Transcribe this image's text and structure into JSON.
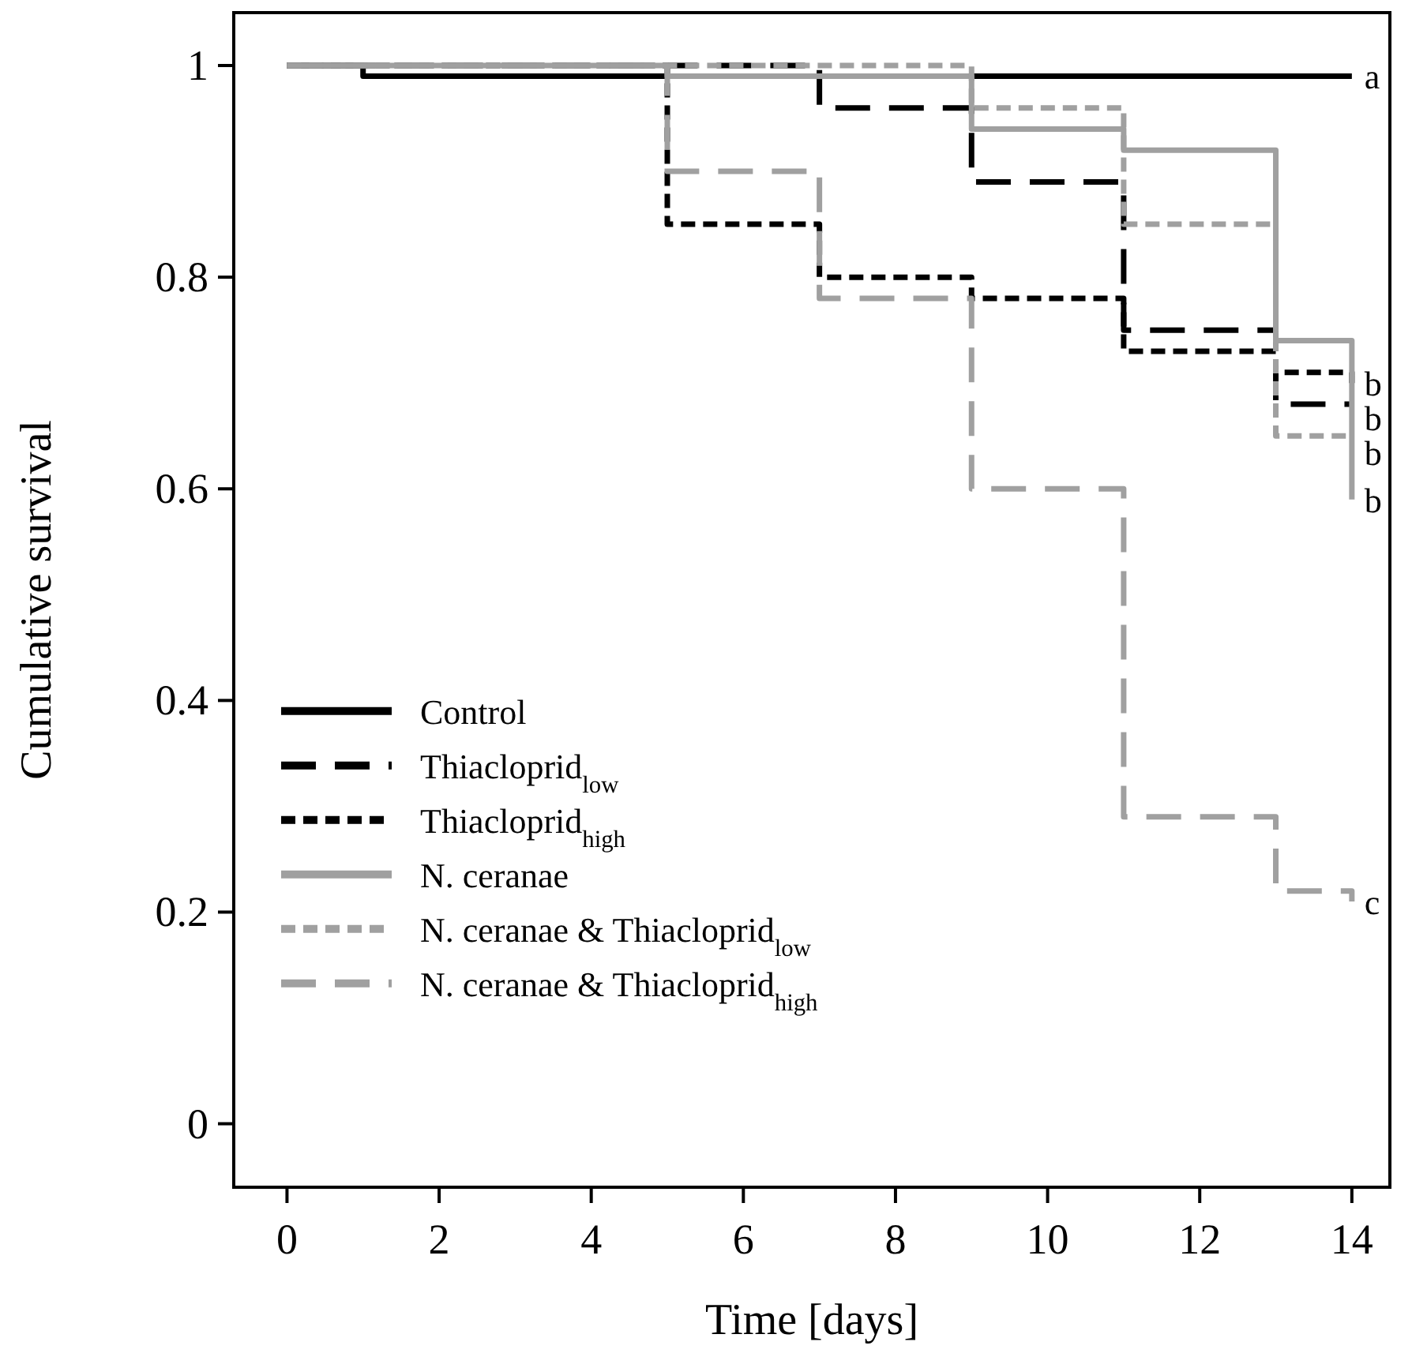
{
  "chart_data": {
    "type": "step",
    "xlabel": "Time [days]",
    "ylabel": "Cumulative survival",
    "xlim": [
      -0.7,
      14.5
    ],
    "ylim": [
      -0.06,
      1.05
    ],
    "xticks": [
      0,
      2,
      4,
      6,
      8,
      10,
      12,
      14
    ],
    "yticks": [
      0,
      0.2,
      0.4,
      0.6,
      0.8,
      1
    ],
    "legend": "bottom left",
    "grid": false,
    "series": [
      {
        "name": "Control",
        "color": "#000000",
        "line_style": "solid",
        "x": [
          0,
          1,
          14
        ],
        "values": [
          1,
          0.99,
          0.99
        ]
      },
      {
        "name": "Thiacloprid$_{low}$",
        "color": "#000000",
        "line_style": "dashed",
        "x": [
          0,
          7,
          9,
          11,
          13,
          14
        ],
        "values": [
          1,
          0.96,
          0.89,
          0.75,
          0.68,
          0.68
        ]
      },
      {
        "name": "Thiacloprid$_{high}$",
        "color": "#000000",
        "line_style": "dotted",
        "x": [
          0,
          5,
          7,
          9,
          11,
          13,
          14
        ],
        "values": [
          1,
          0.85,
          0.8,
          0.78,
          0.73,
          0.71,
          0.7
        ]
      },
      {
        "name": "N. ceranae",
        "color": "#a0a0a0",
        "line_style": "solid",
        "x": [
          0,
          5,
          9,
          11,
          13,
          14
        ],
        "values": [
          1,
          0.99,
          0.94,
          0.92,
          0.74,
          0.59
        ]
      },
      {
        "name": "N. ceranae & Thiacloprid$_{low}$",
        "color": "#a0a0a0",
        "line_style": "dotted",
        "x": [
          0,
          7,
          9,
          11,
          13,
          14
        ],
        "values": [
          1,
          1,
          0.96,
          0.85,
          0.65,
          0.65
        ]
      },
      {
        "name": "N. ceranae & Thiacloprid$_{high}$",
        "color": "#a0a0a0",
        "line_style": "dashed",
        "x": [
          0,
          5,
          7,
          9,
          11,
          13,
          14
        ],
        "values": [
          1,
          0.9,
          0.78,
          0.6,
          0.29,
          0.22,
          0.21
        ]
      }
    ],
    "annotations": [
      "a",
      "b",
      "b",
      "b",
      "b",
      "c"
    ]
  }
}
